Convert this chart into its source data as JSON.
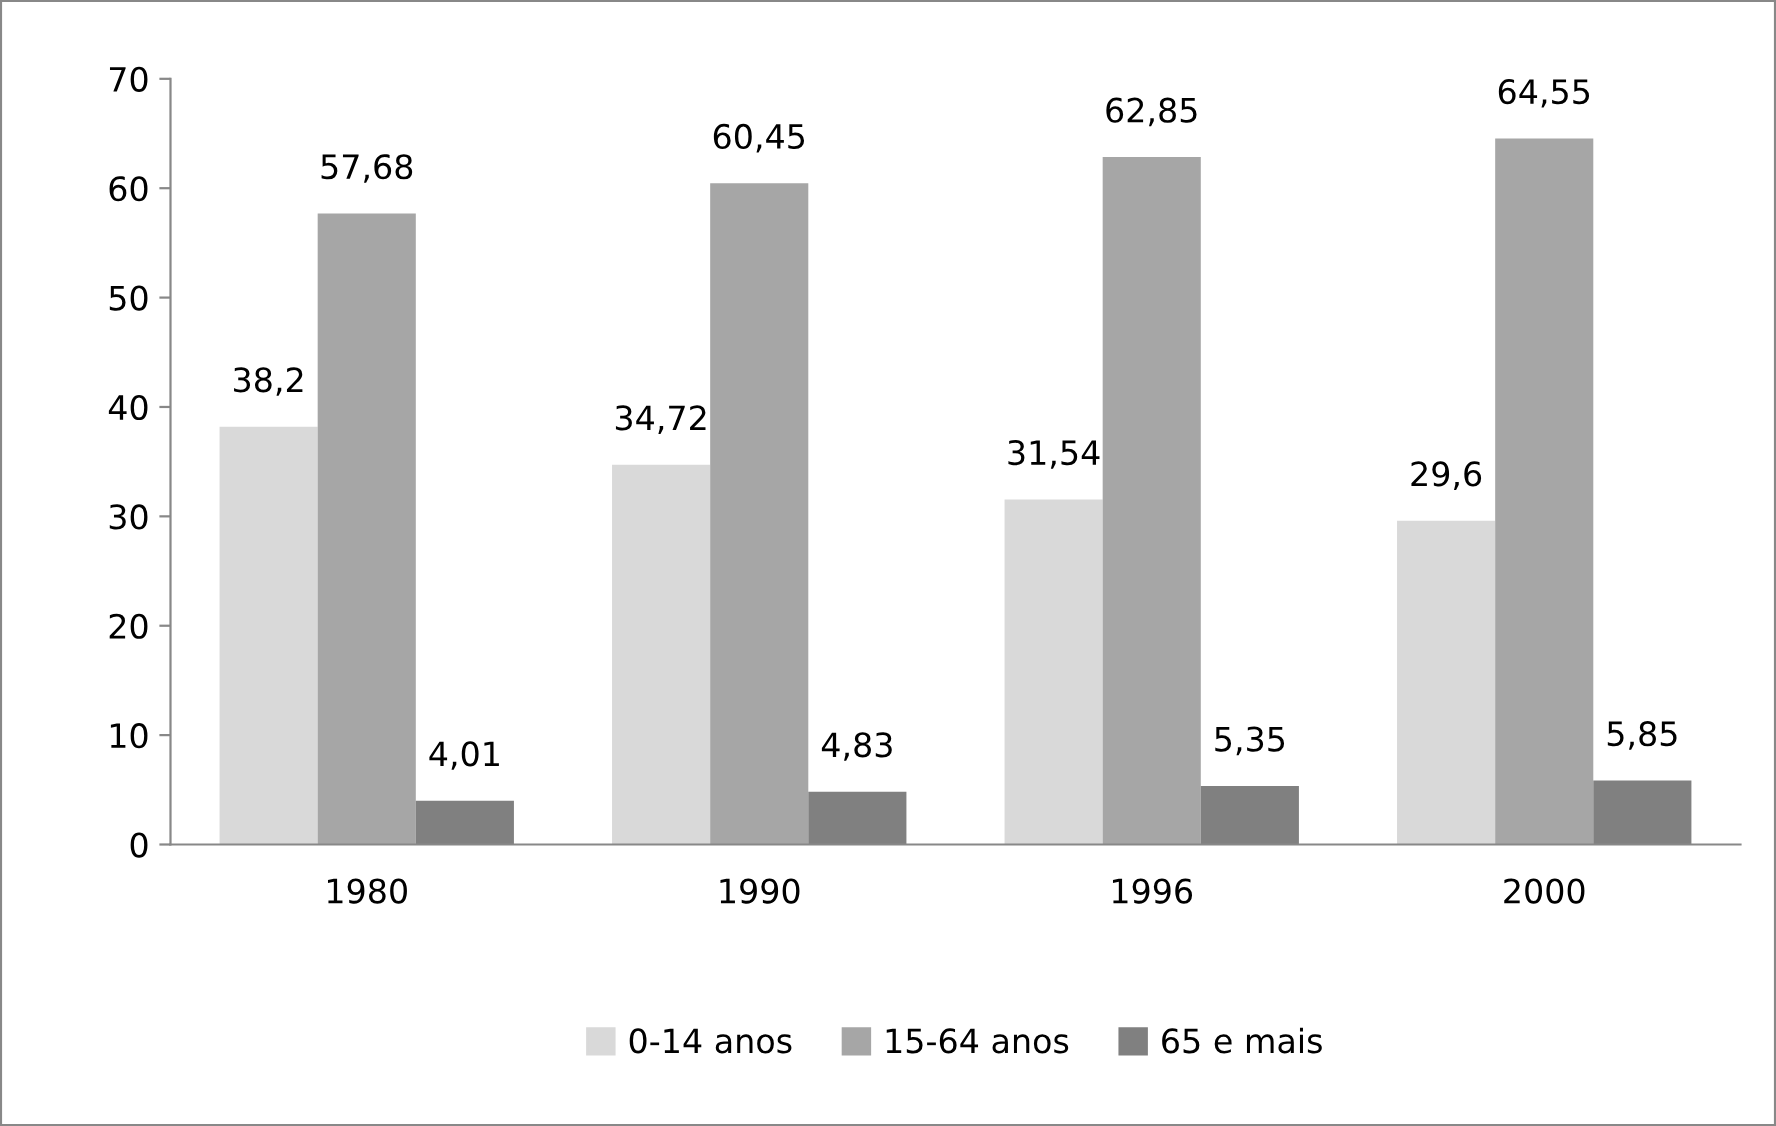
{
  "chart_data": {
    "type": "bar",
    "categories": [
      "1980",
      "1990",
      "1996",
      "2000"
    ],
    "series": [
      {
        "name": "0-14 anos",
        "color": "#d9d9d9",
        "values": [
          38.2,
          34.72,
          31.54,
          29.6
        ],
        "value_labels": [
          "38,2",
          "34,72",
          "31,54",
          "29,6"
        ]
      },
      {
        "name": "15-64 anos",
        "color": "#a6a6a6",
        "values": [
          57.68,
          60.45,
          62.85,
          64.55
        ],
        "value_labels": [
          "57,68",
          "60,45",
          "62,85",
          "64,55"
        ]
      },
      {
        "name": "65 e mais",
        "color": "#808080",
        "values": [
          4.01,
          4.83,
          5.35,
          5.85
        ],
        "value_labels": [
          "4,01",
          "4,83",
          "5,35",
          "5,85"
        ]
      }
    ],
    "ylim": [
      0,
      70
    ],
    "yticks": [
      0,
      10,
      20,
      30,
      40,
      50,
      60,
      70
    ],
    "grid": false,
    "legend": "bottom"
  }
}
